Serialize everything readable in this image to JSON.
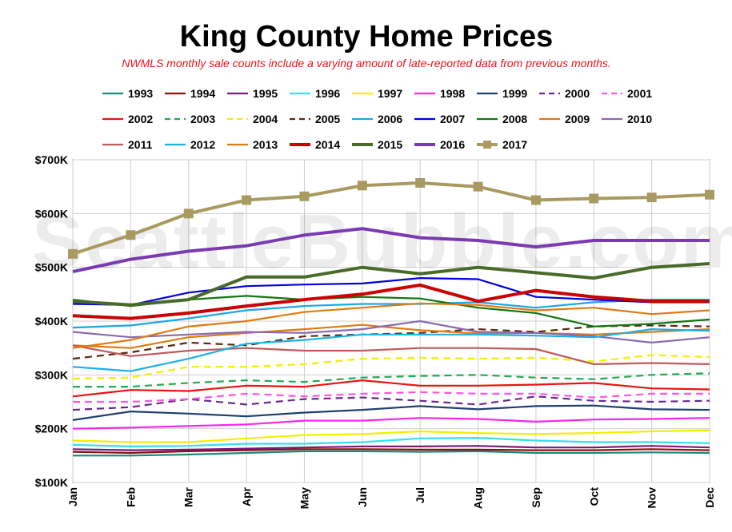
{
  "chart_data": {
    "type": "line",
    "title": "King County Home Prices",
    "subtitle": "NWMLS monthly sale counts include a varying amount of late-reported  data from previous months.",
    "watermark": "SeattleBubble.com",
    "categories": [
      "Jan",
      "Feb",
      "Mar",
      "Apr",
      "May",
      "Jun",
      "Jul",
      "Aug",
      "Sep",
      "Oct",
      "Nov",
      "Dec"
    ],
    "ylim": [
      100000,
      700000
    ],
    "yticks": [
      {
        "value": 100000,
        "label": "$100K"
      },
      {
        "value": 200000,
        "label": "$200K"
      },
      {
        "value": 300000,
        "label": "$300K"
      },
      {
        "value": 400000,
        "label": "$400K"
      },
      {
        "value": 500000,
        "label": "$500K"
      },
      {
        "value": 600000,
        "label": "$600K"
      },
      {
        "value": 700000,
        "label": "$700K"
      }
    ],
    "grid": true,
    "legend_position": "top",
    "series": [
      {
        "name": "1993",
        "color": "#1a8a7a",
        "style": "solid",
        "values": [
          150000,
          150000,
          152000,
          155000,
          158000,
          158000,
          157000,
          158000,
          155000,
          155000,
          156000,
          155000
        ]
      },
      {
        "name": "1994",
        "color": "#8b1010",
        "style": "solid",
        "values": [
          157000,
          155000,
          158000,
          160000,
          162000,
          162000,
          161000,
          161000,
          160000,
          160000,
          162000,
          160000
        ]
      },
      {
        "name": "1995",
        "color": "#7a1a7a",
        "style": "solid",
        "values": [
          162000,
          160000,
          161000,
          163000,
          165000,
          167000,
          167000,
          168000,
          165000,
          165000,
          168000,
          165000
        ]
      },
      {
        "name": "1996",
        "color": "#33e0f0",
        "style": "solid",
        "values": [
          170000,
          167000,
          168000,
          172000,
          172000,
          175000,
          182000,
          183000,
          178000,
          175000,
          175000,
          173000
        ]
      },
      {
        "name": "1997",
        "color": "#f0f000",
        "style": "solid",
        "values": [
          178000,
          175000,
          175000,
          182000,
          188000,
          190000,
          195000,
          192000,
          190000,
          192000,
          195000,
          197000
        ]
      },
      {
        "name": "1998",
        "color": "#ff22ee",
        "style": "solid",
        "values": [
          200000,
          202000,
          205000,
          208000,
          215000,
          215000,
          220000,
          218000,
          213000,
          217000,
          218000,
          220000
        ]
      },
      {
        "name": "1999",
        "color": "#1f3f70",
        "style": "solid",
        "values": [
          216000,
          232000,
          228000,
          223000,
          230000,
          235000,
          242000,
          236000,
          242000,
          243000,
          236000,
          235000
        ]
      },
      {
        "name": "2000",
        "color": "#6a2a8a",
        "style": "dashed",
        "values": [
          235000,
          240000,
          255000,
          245000,
          255000,
          258000,
          252000,
          245000,
          260000,
          252000,
          250000,
          252000
        ]
      },
      {
        "name": "2001",
        "color": "#ff55dd",
        "style": "dashed",
        "values": [
          250000,
          250000,
          255000,
          265000,
          260000,
          265000,
          268000,
          265000,
          265000,
          258000,
          265000,
          265000
        ]
      },
      {
        "name": "2002",
        "color": "#ee1111",
        "style": "solid",
        "values": [
          260000,
          272000,
          270000,
          280000,
          278000,
          290000,
          280000,
          280000,
          282000,
          285000,
          275000,
          273000
        ]
      },
      {
        "name": "2003",
        "color": "#22aa55",
        "style": "dashed",
        "values": [
          278000,
          278000,
          285000,
          290000,
          287000,
          295000,
          298000,
          300000,
          295000,
          292000,
          300000,
          303000
        ]
      },
      {
        "name": "2004",
        "color": "#f0f000",
        "style": "dashed",
        "values": [
          293000,
          295000,
          315000,
          315000,
          320000,
          330000,
          332000,
          330000,
          332000,
          325000,
          337000,
          333000
        ]
      },
      {
        "name": "2005",
        "color": "#5a2a10",
        "style": "dashed",
        "values": [
          330000,
          342000,
          360000,
          355000,
          372000,
          375000,
          378000,
          385000,
          380000,
          390000,
          392000,
          390000
        ]
      },
      {
        "name": "2006",
        "color": "#1aa8e8",
        "style": "solid",
        "values": [
          388000,
          392000,
          405000,
          420000,
          428000,
          432000,
          432000,
          435000,
          425000,
          435000,
          440000,
          440000
        ]
      },
      {
        "name": "2007",
        "color": "#0000dd",
        "style": "solid",
        "values": [
          432000,
          430000,
          453000,
          465000,
          468000,
          470000,
          480000,
          478000,
          445000,
          440000,
          435000,
          435000
        ]
      },
      {
        "name": "2008",
        "color": "#117711",
        "style": "solid",
        "values": [
          440000,
          428000,
          440000,
          447000,
          440000,
          445000,
          442000,
          425000,
          415000,
          390000,
          395000,
          403000
        ]
      },
      {
        "name": "2009",
        "color": "#e07a11",
        "style": "solid",
        "values": [
          355000,
          350000,
          370000,
          378000,
          385000,
          393000,
          383000,
          377000,
          378000,
          375000,
          380000,
          385000
        ]
      },
      {
        "name": "2010",
        "color": "#8a6ab0",
        "style": "solid",
        "values": [
          380000,
          370000,
          375000,
          380000,
          378000,
          385000,
          400000,
          380000,
          378000,
          372000,
          360000,
          370000
        ]
      },
      {
        "name": "2011",
        "color": "#c05a5a",
        "style": "solid",
        "values": [
          355000,
          335000,
          345000,
          350000,
          345000,
          345000,
          350000,
          350000,
          348000,
          320000,
          322000,
          320000
        ]
      },
      {
        "name": "2012",
        "color": "#1ab0e8",
        "style": "solid",
        "values": [
          315000,
          307000,
          330000,
          358000,
          365000,
          375000,
          375000,
          375000,
          373000,
          370000,
          385000,
          382000
        ]
      },
      {
        "name": "2013",
        "color": "#e07a11",
        "style": "solid",
        "values": [
          350000,
          365000,
          390000,
          400000,
          417000,
          425000,
          433000,
          430000,
          420000,
          425000,
          413000,
          420000
        ]
      },
      {
        "name": "2014",
        "color": "#cc0000",
        "style": "solid",
        "values": [
          410000,
          405000,
          415000,
          428000,
          440000,
          450000,
          467000,
          437000,
          457000,
          445000,
          437000,
          437000
        ]
      },
      {
        "name": "2015",
        "color": "#4a6a2a",
        "style": "solid",
        "values": [
          437000,
          430000,
          440000,
          482000,
          482000,
          500000,
          488000,
          500000,
          490000,
          480000,
          500000,
          507000
        ]
      },
      {
        "name": "2016",
        "color": "#7a3ab0",
        "style": "solid",
        "values": [
          492000,
          515000,
          530000,
          540000,
          560000,
          572000,
          555000,
          550000,
          538000,
          550000,
          550000,
          550000
        ]
      },
      {
        "name": "2017",
        "color": "#a89a60",
        "style": "marker",
        "values": [
          525000,
          560000,
          600000,
          625000,
          632000,
          652000,
          657000,
          650000,
          625000,
          628000,
          630000,
          635000
        ]
      }
    ]
  }
}
